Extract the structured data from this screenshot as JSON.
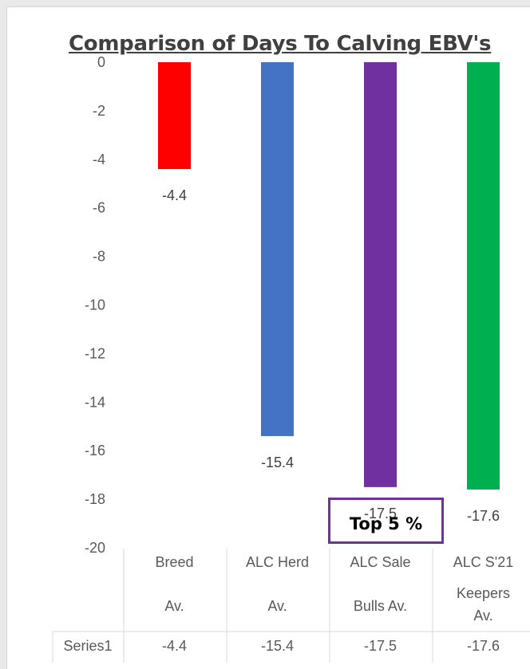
{
  "chart_data": {
    "type": "bar",
    "title": "Comparison of Days To Calving EBV's",
    "categories": [
      {
        "line1": "Breed",
        "line2": "Av.",
        "line3": ""
      },
      {
        "line1": "ALC Herd",
        "line2": "Av.",
        "line3": ""
      },
      {
        "line1": "ALC Sale",
        "line2": "Bulls Av.",
        "line3": ""
      },
      {
        "line1": "ALC S'21",
        "line2": "Keepers",
        "line3": "Av."
      }
    ],
    "series": [
      {
        "name": "Series1",
        "values": [
          -4.4,
          -15.4,
          -17.5,
          -17.6
        ],
        "colors": [
          "#ff0000",
          "#4472c4",
          "#7030a0",
          "#00b050"
        ]
      }
    ],
    "data_labels": [
      "-4.4",
      "-15.4",
      "-17.5",
      "-17.6"
    ],
    "y_ticks": [
      "0",
      "-2",
      "-4",
      "-6",
      "-8",
      "-10",
      "-12",
      "-14",
      "-16",
      "-18",
      "-20"
    ],
    "ylim": [
      -20,
      0
    ],
    "grid": false,
    "data_table": true,
    "table_values": [
      "-4.4",
      "-15.4",
      "-17.5",
      "-17.6"
    ],
    "annotation": "Top 5 %"
  }
}
